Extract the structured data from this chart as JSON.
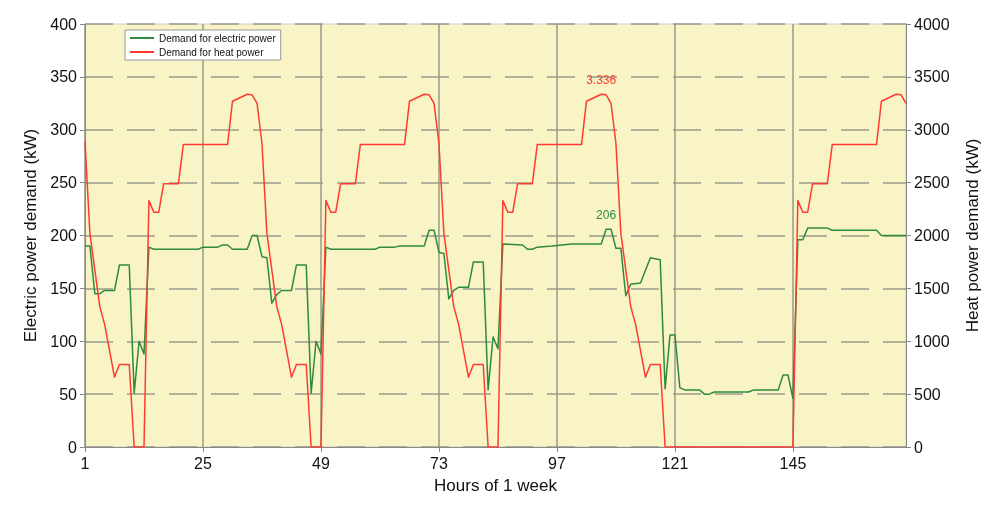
{
  "chart_data": {
    "type": "line",
    "xlabel": "Hours of 1 week",
    "ylabel": "Electric power demand (kW)",
    "y2label": "Heat power demand (kW)",
    "xlim": [
      1,
      168
    ],
    "xticks": [
      1,
      25,
      49,
      73,
      97,
      121,
      145
    ],
    "ylim": [
      0,
      400
    ],
    "yticks": [
      0,
      50,
      100,
      150,
      200,
      250,
      300,
      350,
      400
    ],
    "y2lim": [
      0,
      4000
    ],
    "y2ticks": [
      0,
      500,
      1000,
      1500,
      2000,
      2500,
      3000,
      3500,
      4000
    ],
    "grid": true,
    "legend": "top left",
    "series": [
      {
        "name": "Demand for electric power",
        "color": "#2e8b3e",
        "x": [
          1,
          2,
          3,
          4,
          5,
          7,
          8,
          10,
          11,
          12,
          13,
          14,
          15,
          24,
          25,
          28,
          29,
          30,
          31,
          34,
          35,
          36,
          37,
          38,
          39,
          40,
          41,
          43,
          44,
          46,
          47,
          48,
          49,
          50,
          51,
          60,
          61,
          64,
          65,
          70,
          71,
          72,
          73,
          74,
          75,
          76,
          77,
          79,
          80,
          82,
          83,
          84,
          85,
          86,
          90,
          91,
          92,
          93,
          96,
          100,
          106,
          107,
          108,
          109,
          110,
          111,
          112,
          114,
          116,
          118,
          119,
          120,
          121,
          122,
          123,
          126,
          127,
          128,
          129,
          136,
          137,
          142,
          143,
          144,
          145,
          146,
          147,
          148,
          152,
          153,
          162,
          163,
          168
        ],
        "values": [
          190,
          190,
          145,
          145,
          148,
          148,
          172,
          172,
          51,
          100,
          88,
          189,
          187,
          187,
          189,
          189,
          191,
          191,
          187,
          187,
          200,
          200,
          180,
          179,
          136,
          144,
          148,
          148,
          172,
          172,
          51,
          100,
          88,
          189,
          187,
          187,
          189,
          189,
          190,
          190,
          205,
          205,
          184,
          183,
          140,
          148,
          151,
          151,
          175,
          175,
          54,
          104,
          93,
          192,
          191,
          187,
          187,
          189,
          190,
          192,
          192,
          206,
          206,
          188,
          188,
          143,
          154,
          155,
          179,
          177,
          55,
          106,
          106,
          56,
          54,
          54,
          50,
          50,
          52,
          52,
          54,
          54,
          68,
          68,
          46,
          196,
          196,
          207,
          207,
          205,
          205,
          200,
          200
        ],
        "value_labels": [
          null,
          null,
          null,
          null,
          null,
          null,
          null,
          null,
          null,
          null,
          null,
          null,
          null,
          null,
          null,
          null,
          null,
          null,
          null,
          null,
          null,
          null,
          null,
          null,
          null,
          null,
          null,
          null,
          null,
          null,
          null,
          null,
          null,
          null,
          null,
          null,
          null,
          null,
          null,
          null,
          null,
          null,
          null,
          null,
          null,
          null,
          null,
          null,
          null,
          null,
          null,
          null,
          null,
          null,
          null,
          null,
          null,
          null,
          null,
          null,
          null,
          "206",
          null,
          null,
          null,
          null,
          null,
          null,
          null,
          null,
          null,
          null,
          null,
          null,
          null,
          null,
          null,
          null,
          null,
          null,
          null,
          null,
          null,
          null,
          null,
          null,
          null,
          null,
          null,
          null,
          null,
          null,
          null
        ]
      },
      {
        "name": "Demand for heat power",
        "color": "#ff3b30",
        "axis": "y2",
        "x": [
          1,
          2,
          4,
          5,
          7,
          8,
          10,
          11,
          13,
          14,
          15,
          16,
          17,
          20,
          21,
          30,
          31,
          34,
          35,
          36,
          37,
          38,
          40,
          41,
          43,
          44,
          46,
          47,
          49,
          50,
          51,
          52,
          53,
          56,
          57,
          66,
          67,
          70,
          71,
          72,
          73,
          74,
          76,
          77,
          79,
          80,
          82,
          83,
          85,
          86,
          87,
          88,
          89,
          92,
          93,
          102,
          103,
          106,
          107,
          108,
          109,
          110,
          112,
          113,
          115,
          116,
          118,
          119,
          145,
          146,
          147,
          148,
          149,
          152,
          153,
          162,
          163,
          166,
          167,
          168
        ],
        "values": [
          2890,
          2020,
          1330,
          1160,
          660,
          780,
          780,
          0,
          0,
          2330,
          2220,
          2220,
          2490,
          2490,
          2860,
          2860,
          3270,
          3336,
          3330,
          3250,
          2870,
          2020,
          1330,
          1160,
          660,
          780,
          780,
          0,
          0,
          2330,
          2220,
          2220,
          2490,
          2490,
          2860,
          2860,
          3270,
          3336,
          3330,
          3250,
          2870,
          2020,
          1330,
          1160,
          660,
          780,
          780,
          0,
          0,
          2330,
          2220,
          2220,
          2490,
          2490,
          2860,
          2860,
          3270,
          3336,
          3330,
          3250,
          2870,
          2020,
          1330,
          1160,
          660,
          780,
          780,
          0,
          0,
          2330,
          2220,
          2220,
          2490,
          2490,
          2860,
          2860,
          3270,
          3336,
          3330,
          3250
        ],
        "value_labels": [
          null,
          null,
          null,
          null,
          null,
          null,
          null,
          null,
          null,
          null,
          null,
          null,
          null,
          null,
          null,
          null,
          null,
          null,
          null,
          null,
          null,
          null,
          null,
          null,
          null,
          null,
          null,
          null,
          null,
          null,
          null,
          null,
          null,
          null,
          null,
          null,
          null,
          null,
          null,
          null,
          null,
          null,
          null,
          null,
          null,
          null,
          null,
          null,
          null,
          null,
          null,
          null,
          null,
          null,
          null,
          null,
          null,
          "3.336",
          null,
          null,
          null,
          null,
          null,
          null,
          null,
          null,
          null,
          null,
          null,
          null,
          null,
          null,
          null,
          null,
          null,
          null,
          null,
          null,
          null,
          null
        ]
      }
    ]
  }
}
